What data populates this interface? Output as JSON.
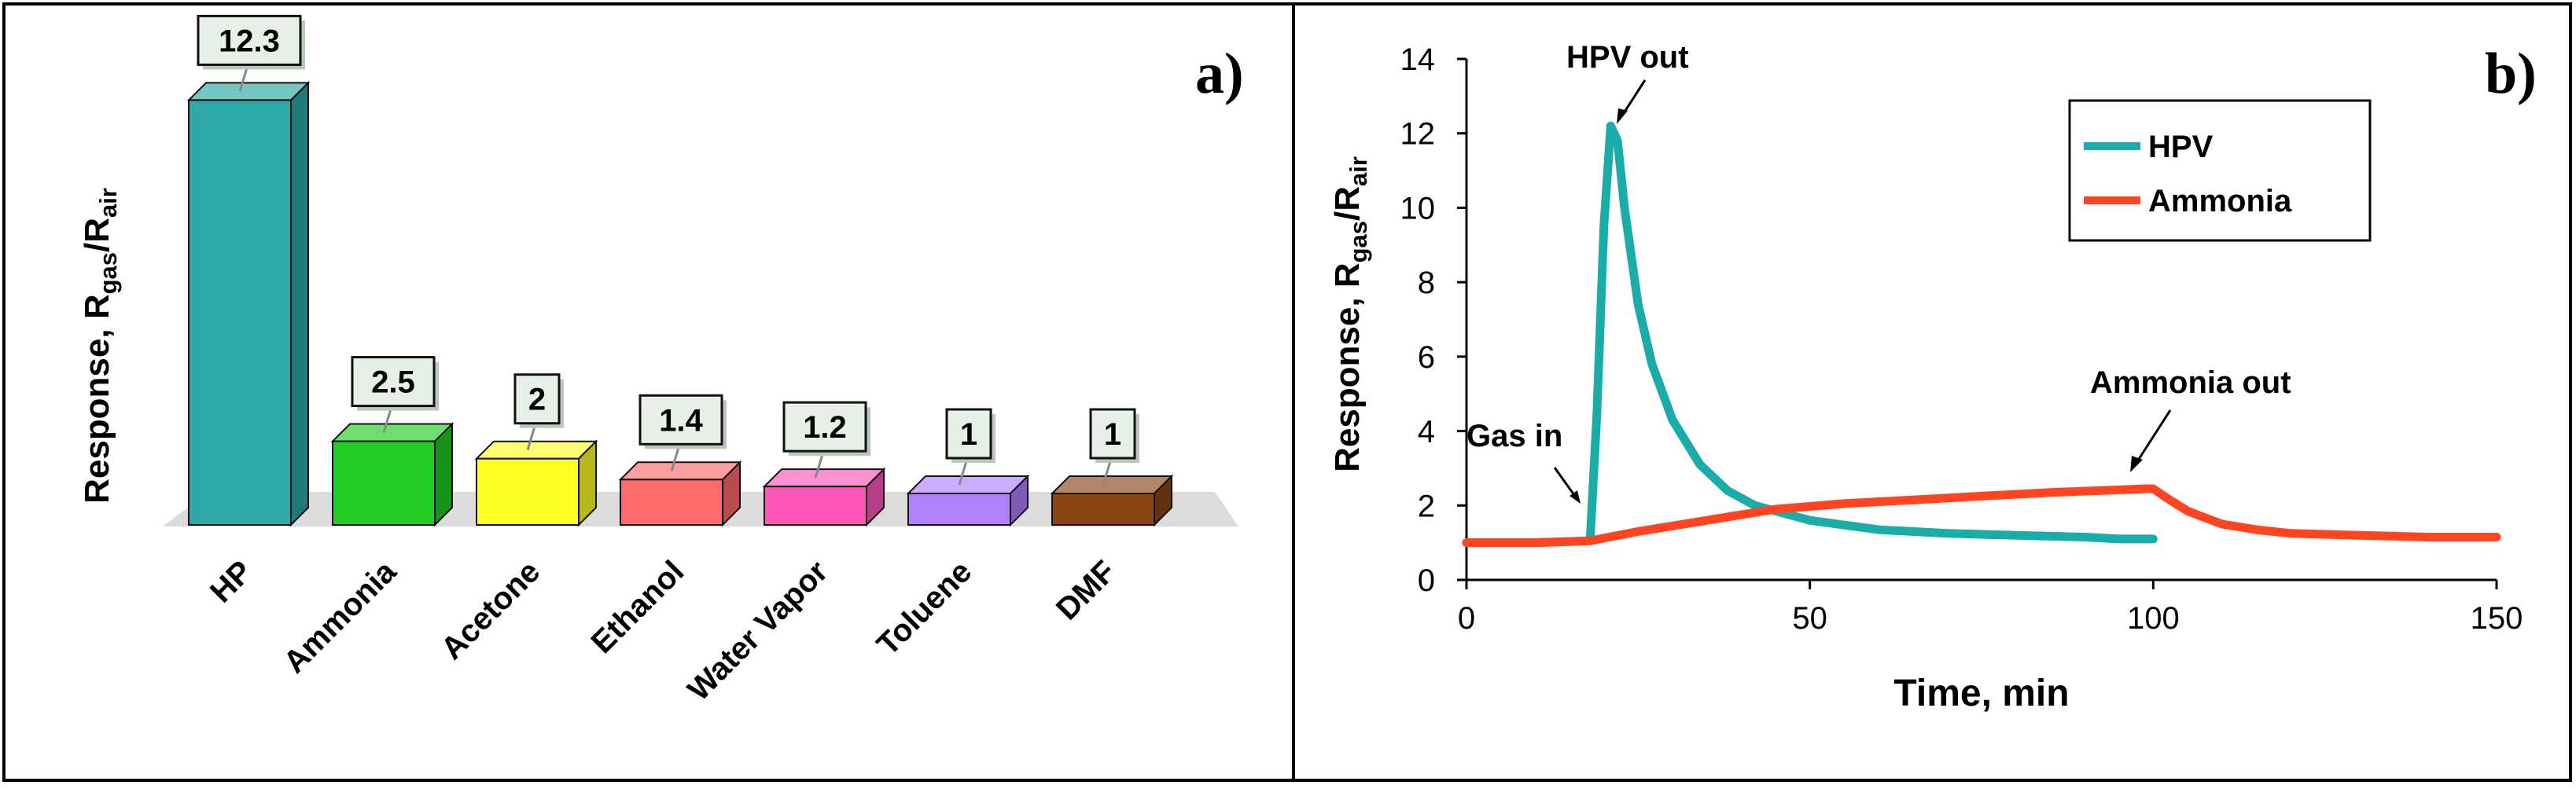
{
  "panel_a": {
    "panel_label": "a)",
    "ylabel_main": "Response, R",
    "ylabel_sub1": "gas",
    "ylabel_slash": "/R",
    "ylabel_sub2": "air"
  },
  "panel_b": {
    "panel_label": "b)",
    "ylabel_main": "Response, R",
    "ylabel_sub1": "gas",
    "ylabel_slash": "/R",
    "ylabel_sub2": "air",
    "xlabel": "Time, min",
    "annotations": {
      "hpv_out": "HPV out",
      "ammonia_out": "Ammonia out",
      "gas_in": "Gas in"
    }
  },
  "chart_data": [
    {
      "type": "bar",
      "panel": "a)",
      "title": "",
      "xlabel": "",
      "ylabel": "Response, Rgas/Rair",
      "categories": [
        "HP",
        "Ammonia",
        "Acetone",
        "Ethanol",
        "Water Vapor",
        "Toluene",
        "DMF"
      ],
      "values": [
        12.3,
        2.5,
        2,
        1.4,
        1.2,
        1,
        1
      ],
      "value_labels": [
        "12.3",
        "2.5",
        "2",
        "1.4",
        "1.2",
        "1",
        "1"
      ],
      "colors": [
        "#2ea8a8",
        "#22cc22",
        "#ffff22",
        "#ff6a6a",
        "#ff55bb",
        "#b080ff",
        "#8b4513"
      ],
      "grid": false,
      "axis_ticks_shown": false
    },
    {
      "type": "line",
      "panel": "b)",
      "title": "",
      "xlabel": "Time, min",
      "ylabel": "Response, Rgas/Rair",
      "xlim": [
        0,
        150
      ],
      "ylim": [
        0,
        14
      ],
      "xticks": [
        0,
        50,
        100,
        150
      ],
      "yticks": [
        0,
        2,
        4,
        6,
        8,
        10,
        12,
        14
      ],
      "legend_position": "top-right",
      "grid": false,
      "series": [
        {
          "name": "HPV",
          "color": "#1aaca8",
          "x": [
            0,
            10,
            18,
            19,
            20,
            21,
            22,
            23,
            25,
            27,
            30,
            34,
            38,
            42,
            50,
            60,
            70,
            80,
            90,
            95,
            100
          ],
          "y": [
            1.0,
            1.0,
            1.05,
            4.5,
            9.5,
            12.2,
            11.8,
            10.0,
            7.4,
            5.8,
            4.3,
            3.1,
            2.4,
            2.0,
            1.6,
            1.35,
            1.25,
            1.2,
            1.15,
            1.1,
            1.1
          ]
        },
        {
          "name": "Ammonia",
          "color": "#ff4422",
          "x": [
            0,
            10,
            18,
            25,
            35,
            45,
            55,
            65,
            75,
            85,
            95,
            99,
            100,
            102,
            105,
            110,
            115,
            120,
            130,
            140,
            150
          ],
          "y": [
            1.0,
            1.0,
            1.05,
            1.3,
            1.6,
            1.9,
            2.05,
            2.15,
            2.25,
            2.35,
            2.42,
            2.45,
            2.45,
            2.2,
            1.85,
            1.5,
            1.35,
            1.25,
            1.2,
            1.15,
            1.15
          ]
        }
      ],
      "annotations": [
        {
          "text": "HPV out",
          "x": 21,
          "y": 12.2
        },
        {
          "text": "Gas in",
          "x": 18,
          "y": 1.05
        },
        {
          "text": "Ammonia out",
          "x": 100,
          "y": 2.45
        }
      ]
    }
  ]
}
